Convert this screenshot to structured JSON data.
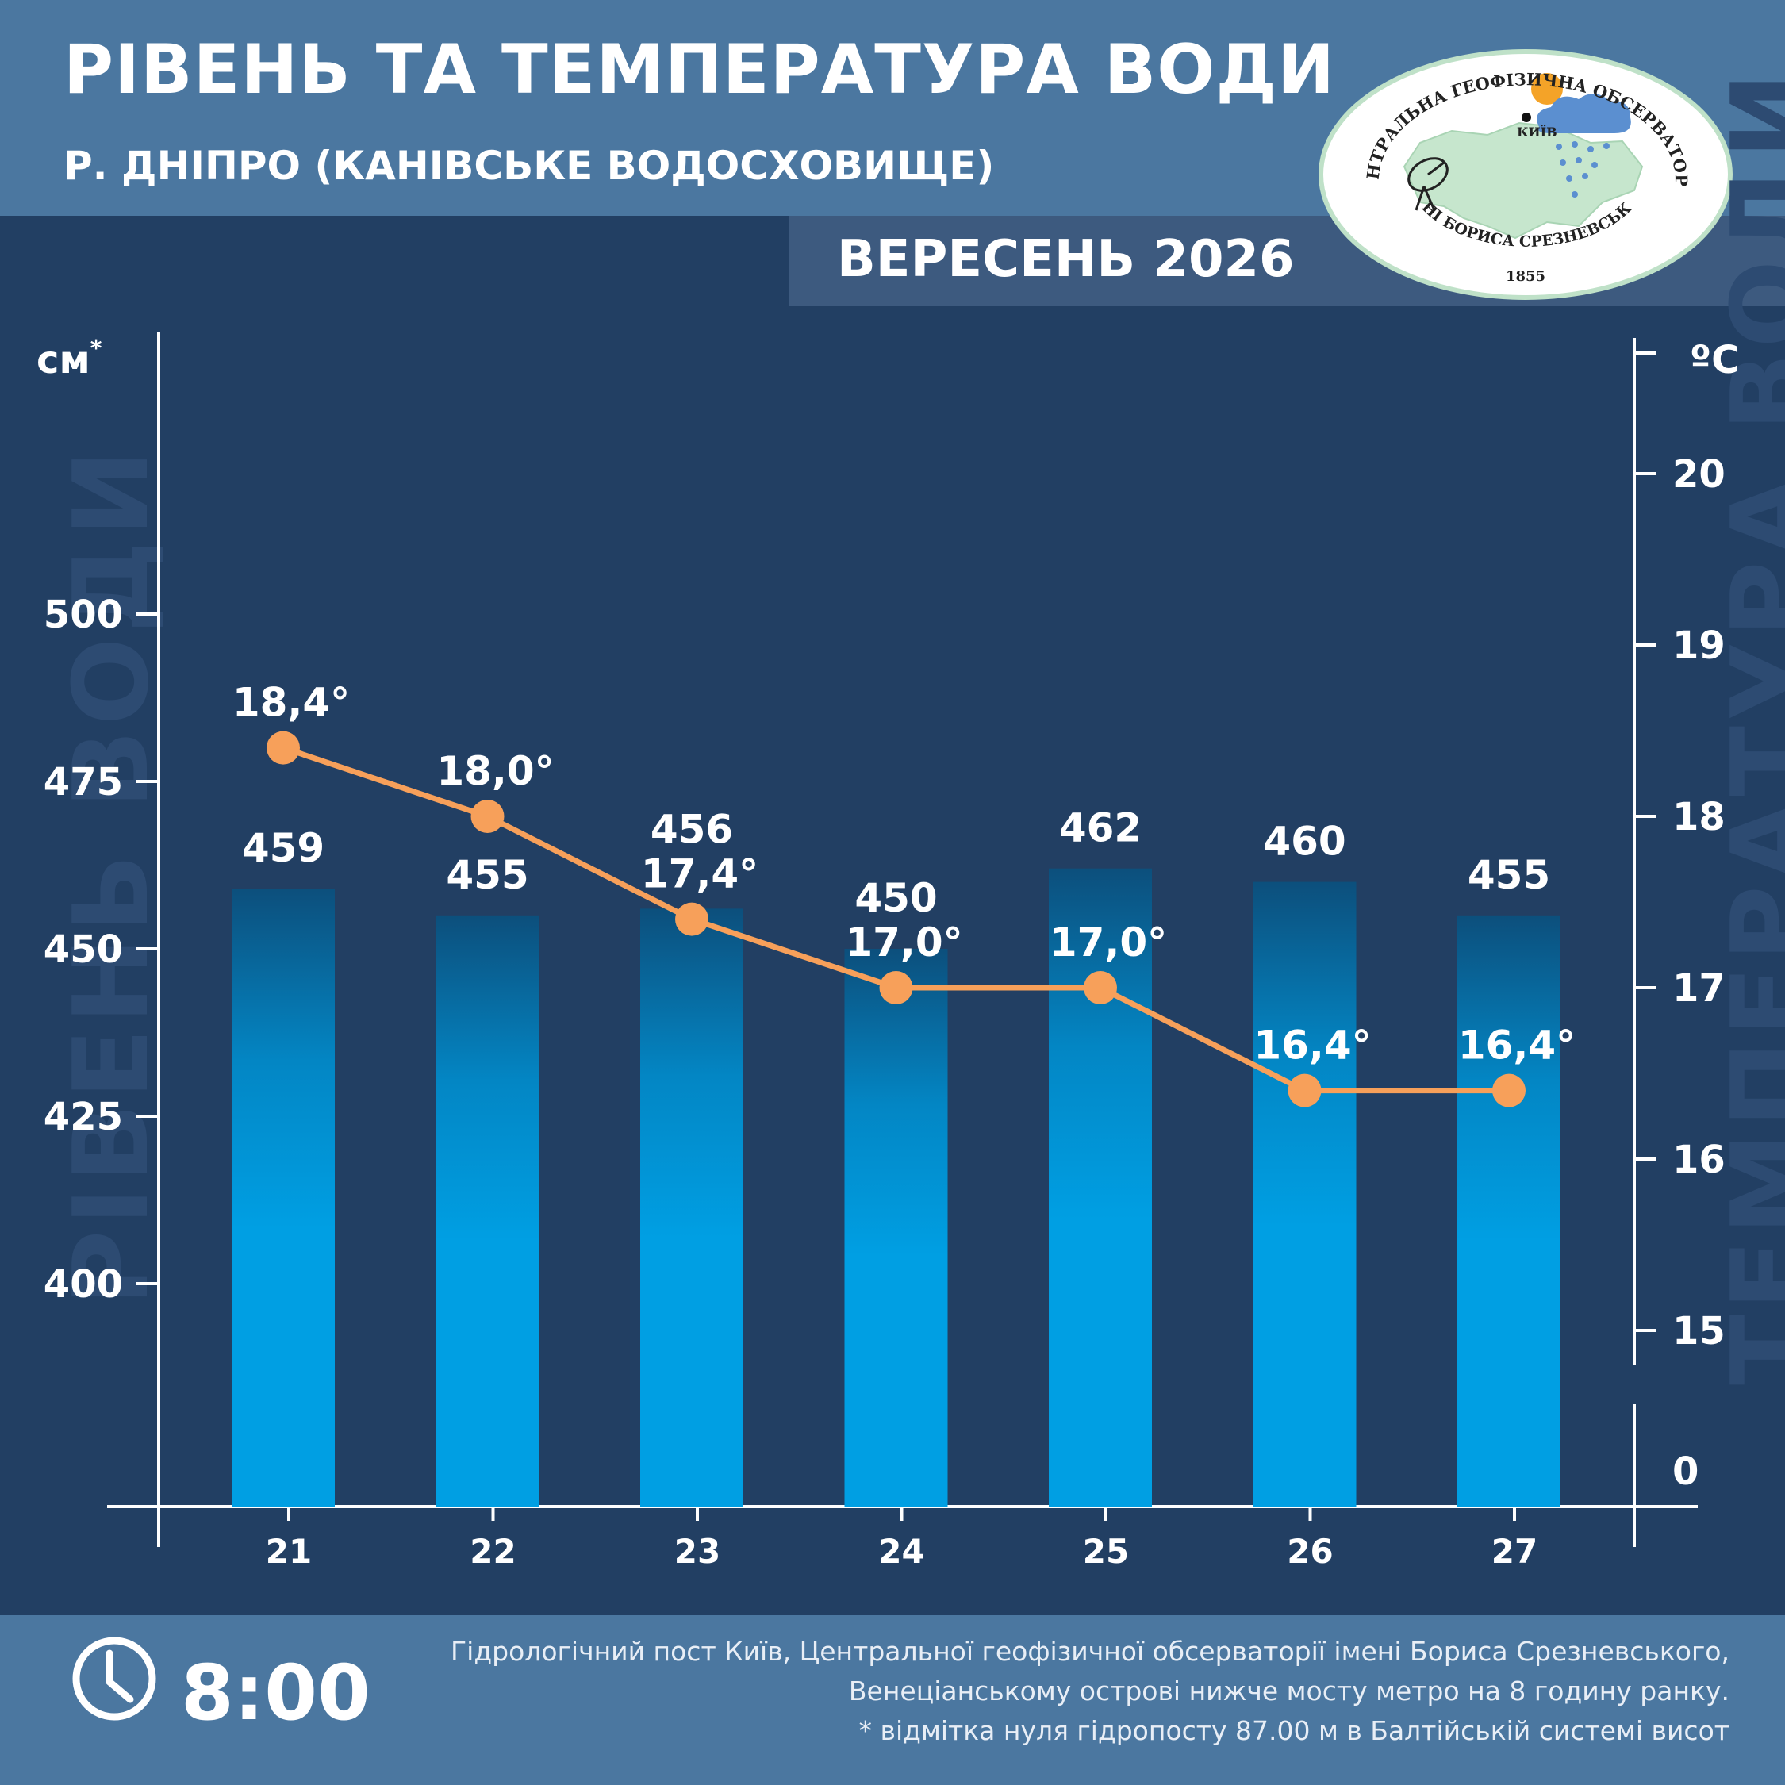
{
  "header": {
    "title": "РІВЕНЬ ТА ТЕМПЕРАТУРА ВОДИ",
    "subtitle": "Р. ДНІПРО (КАНІВСЬКЕ ВОДОСХОВИЩЕ)",
    "month": "ВЕРЕСЕНЬ 2026"
  },
  "logo": {
    "text_top": "ЦЕНТРАЛЬНА ГЕОФІЗИЧНА ОБСЕРВАТОРІЯ",
    "text_bottom": "ІМЕНІ БОРИСА СРЕЗНЕВСЬКОГО",
    "year": "1855",
    "city": "КИЇВ"
  },
  "watermarks": {
    "left": "РІВЕНЬ ВОДИ",
    "right": "ТЕМПЕРАТУРА ВОДИ"
  },
  "chart_data": {
    "type": "bar",
    "categories": [
      "21",
      "22",
      "23",
      "24",
      "25",
      "26",
      "27"
    ],
    "left_axis": {
      "unit": "см",
      "unit_mark": "*",
      "ticks": [
        400,
        425,
        450,
        475,
        500
      ]
    },
    "right_axis": {
      "unit": "ºC",
      "ticks": [
        0,
        15,
        16,
        17,
        18,
        19,
        20
      ],
      "axis_break": true
    },
    "series": [
      {
        "kind": "bar",
        "axis": "left",
        "values": [
          459,
          455,
          456,
          450,
          462,
          460,
          455
        ],
        "labels": [
          "459",
          "455",
          "456",
          "450",
          "462",
          "460",
          "455"
        ],
        "color": "#009fe3"
      },
      {
        "kind": "line",
        "axis": "right",
        "values": [
          18.4,
          18.0,
          17.4,
          17.0,
          17.0,
          16.4,
          16.4
        ],
        "labels": [
          "18,4°",
          "18,0°",
          "17,4°",
          "17,0°",
          "17,0°",
          "16,4°",
          "16,4°"
        ],
        "color": "#f7a05a"
      }
    ],
    "grid": false
  },
  "footer": {
    "time": "8:00",
    "note_line1": "Гідрологічний пост Київ, Центральної геофізичної обсерваторії імені Бориса Срезневського,",
    "note_line2": "Венеціанському острові нижче мосту метро  на 8 годину ранку.",
    "note_line3": "* відмітка нуля гідропосту 87.00 м в Балтійській системі висот"
  },
  "colors": {
    "background": "#223f63",
    "header": "#4b77a0",
    "bar_top": "#0c4f7c",
    "bar_bottom": "#009fe3",
    "line": "#f7a05a",
    "watermark": "#2d4b72"
  }
}
